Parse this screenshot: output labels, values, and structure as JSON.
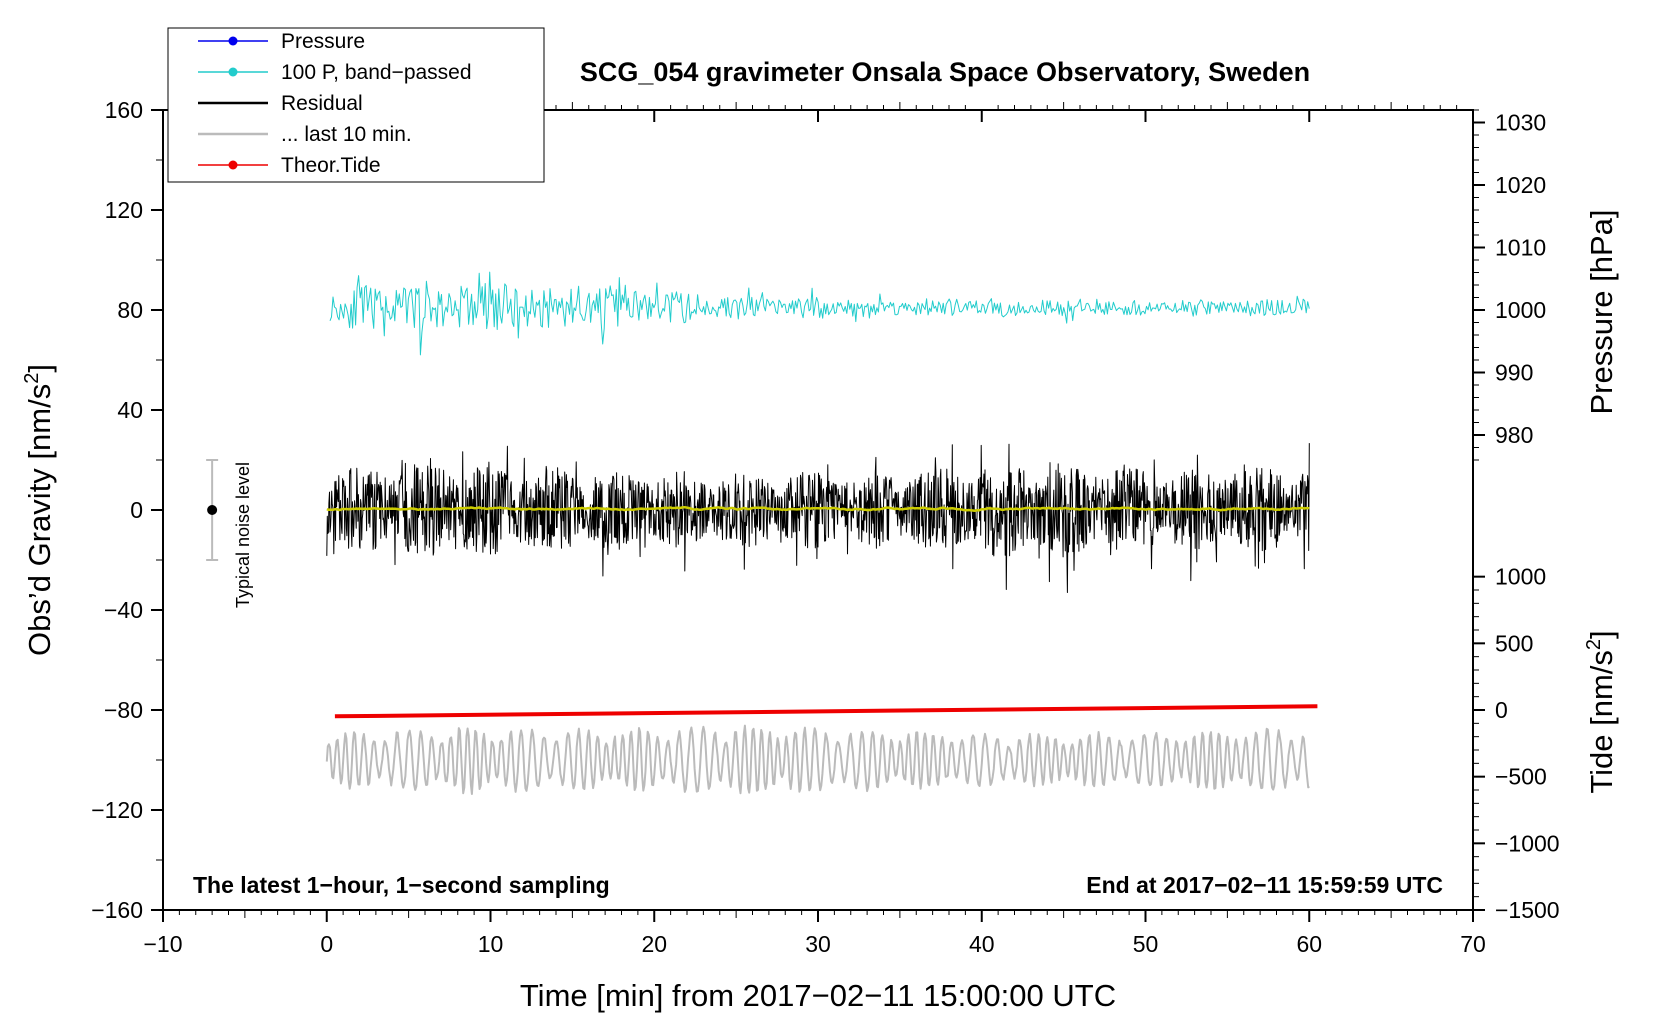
{
  "chart_data": {
    "type": "line",
    "title": "SCG_054 gravimeter Onsala Space Observatory, Sweden",
    "xlabel": "Time [min] from 2017−02−11 15:00:00 UTC",
    "ylabel_left": "Obs’d Gravity [nm/s",
    "ylabel_left_sup": "2",
    "ylabel_left_end": "]",
    "ylabel_right_top": "Pressure [hPa]",
    "ylabel_right_bottom": "Tide [nm/s",
    "ylabel_right_bottom_sup": "2",
    "ylabel_right_bottom_end": "]",
    "xlim": [
      -10,
      70
    ],
    "ylim_left": [
      -160,
      160
    ],
    "x_ticks": [
      "−10",
      "0",
      "10",
      "20",
      "30",
      "40",
      "50",
      "60",
      "70"
    ],
    "x_tick_values": [
      -10,
      0,
      10,
      20,
      30,
      40,
      50,
      60,
      70
    ],
    "y_ticks_left": [
      "160",
      "120",
      "80",
      "40",
      "0",
      "−40",
      "−80",
      "−120",
      "−160"
    ],
    "y_tick_values_left": [
      160,
      120,
      80,
      40,
      0,
      -40,
      -80,
      -120,
      -160
    ],
    "pressure_axis": {
      "ticks": [
        "1030",
        "1020",
        "1010",
        "1000",
        "990",
        "980"
      ],
      "tick_values": [
        1030,
        1020,
        1010,
        1000,
        990,
        980
      ],
      "map_left": [
        [
          1000,
          80
        ],
        [
          1010,
          105
        ]
      ]
    },
    "tide_axis": {
      "ticks": [
        "1000",
        "500",
        "0",
        "−500",
        "−1000",
        "−1500"
      ],
      "tick_values": [
        1000,
        500,
        0,
        -500,
        -1000,
        -1500
      ],
      "map_left": [
        [
          0,
          -80
        ],
        [
          -1500,
          -160
        ]
      ]
    },
    "legend": [
      {
        "label": "Pressure",
        "color": "#0000ee",
        "marker": true
      },
      {
        "label": "100 P, band−passed",
        "color": "#22cccc",
        "marker": true
      },
      {
        "label": "Residual",
        "color": "#000000",
        "marker": false
      },
      {
        "label": "... last 10 min.",
        "color": "#bbbbbb",
        "marker": false
      },
      {
        "label": "Theor.Tide",
        "color": "#ee0000",
        "marker": true
      }
    ],
    "series": [
      {
        "name": "100 P, band−passed",
        "color": "#22cccc",
        "x_range": [
          0.2,
          60
        ],
        "center": 81,
        "amplitude": [
          8,
          12,
          9,
          5,
          4,
          4,
          3,
          4
        ],
        "min": 56,
        "max": 102
      },
      {
        "name": "Residual",
        "color": "#000000",
        "x_range": [
          0,
          60
        ],
        "center": 0,
        "amplitude": [
          17,
          20,
          16,
          15,
          16,
          20,
          16,
          18
        ],
        "min": -33,
        "max": 38
      },
      {
        "name": "Residual smoothed",
        "color": "#cccc00",
        "x_range": [
          0,
          60
        ],
        "center": 0.5,
        "amplitude": [
          1.5
        ]
      },
      {
        "name": "... last 10 min.",
        "color": "#bbbbbb",
        "x_range": [
          0,
          60
        ],
        "center": -100,
        "amplitude": [
          11,
          13,
          12,
          14,
          12,
          10,
          11,
          13
        ],
        "min": -127,
        "max": -70
      },
      {
        "name": "Theor.Tide",
        "color": "#ee0000",
        "x": [
          0.5,
          60.5
        ],
        "y": [
          -82.5,
          -78.5
        ]
      }
    ],
    "noise_bar": {
      "label": "Typical noise level",
      "x": -7,
      "y": 0,
      "range": [
        -20,
        20
      ]
    },
    "annotation_left": "The latest 1−hour, 1−second sampling",
    "annotation_right": "End at 2017−02−11 15:59:59 UTC"
  }
}
